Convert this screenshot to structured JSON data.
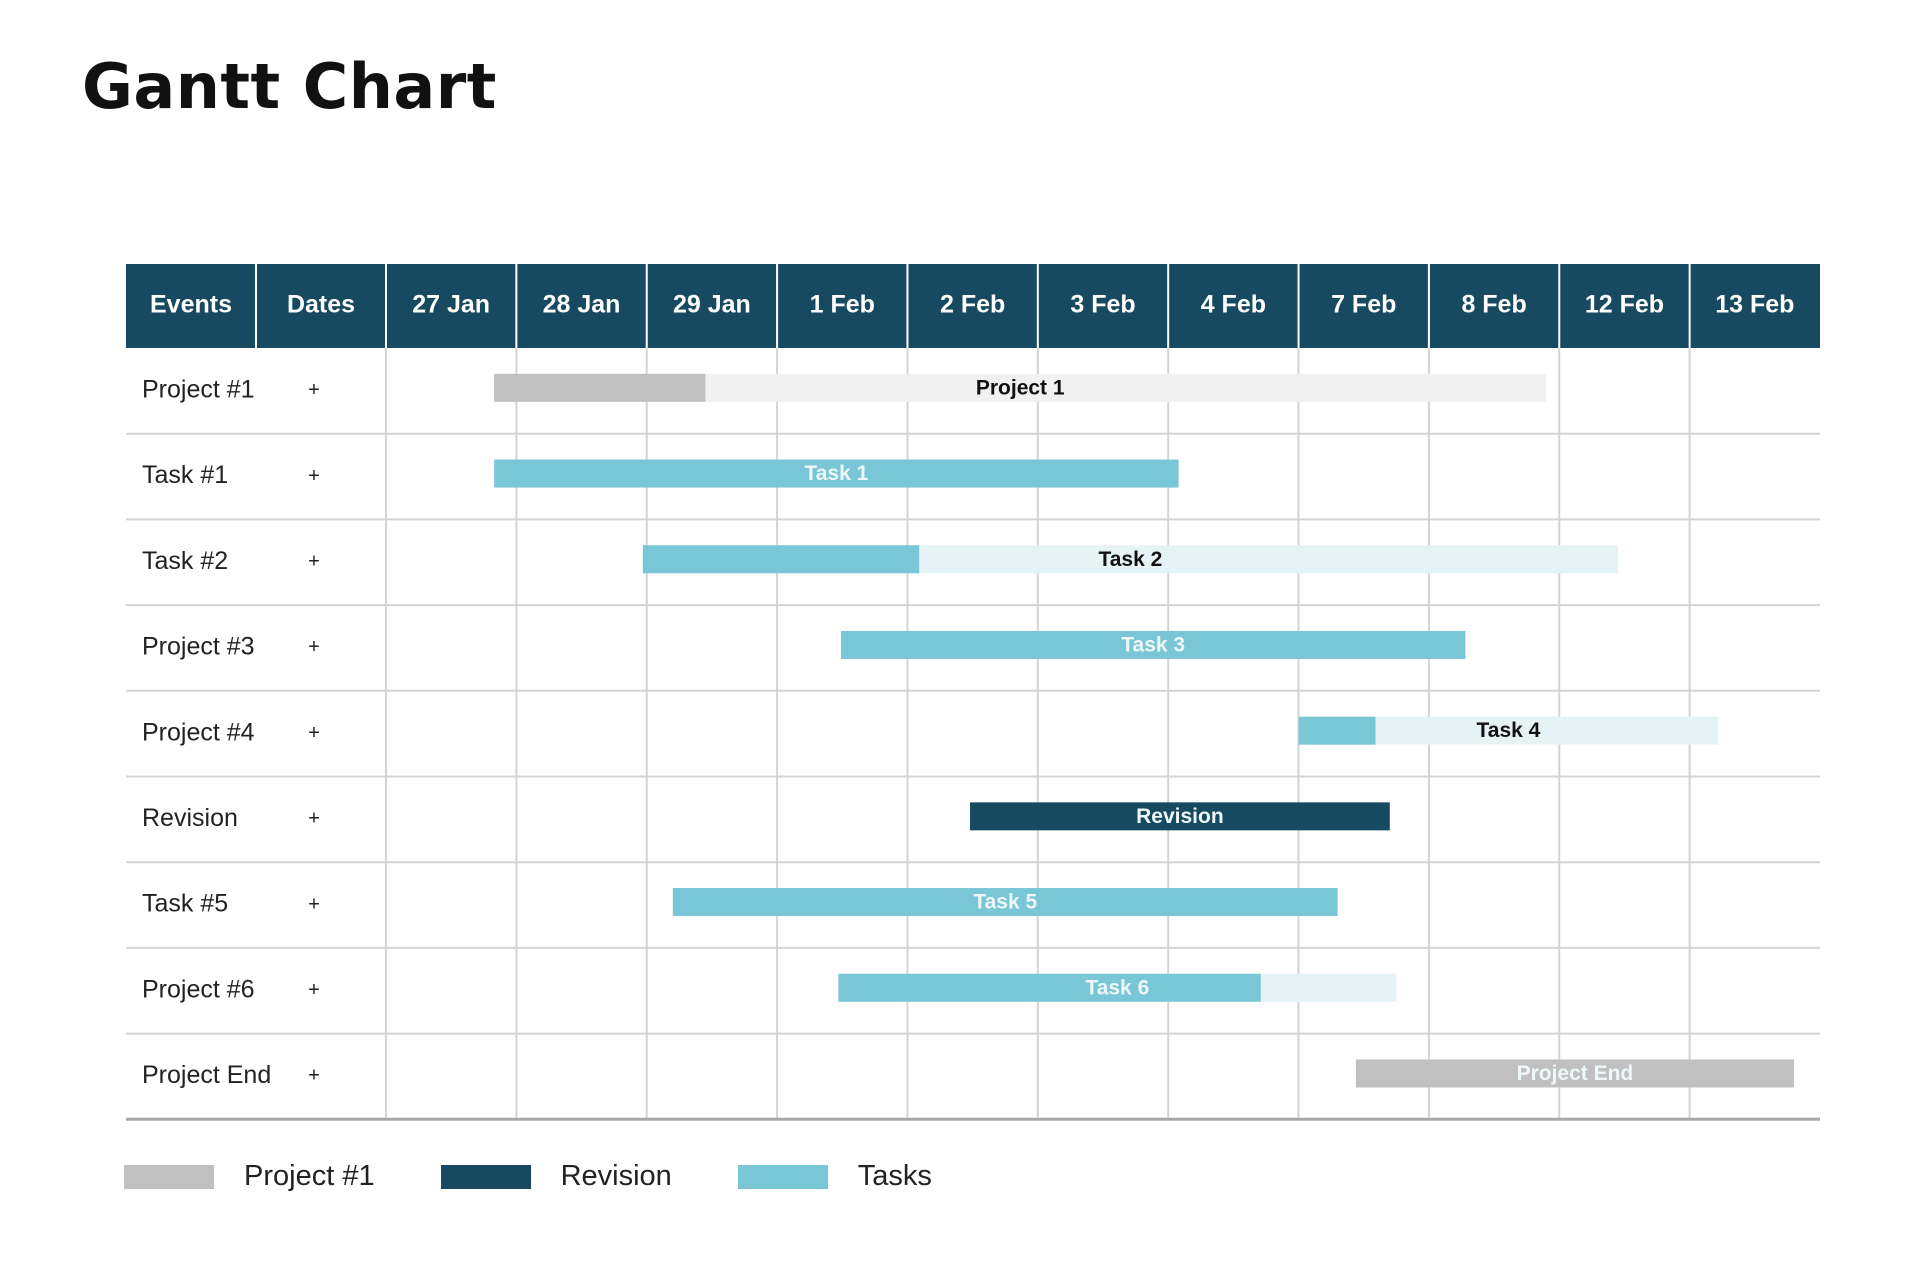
{
  "title": "Gantt Chart",
  "colors": {
    "header_bg": "#174a60",
    "header_text": "#ffffff",
    "grid": "#d4d4d4",
    "project": "#c0c0c0",
    "project_light": "#f1f1f1",
    "task": "#78c6d6",
    "task_light": "#e6f3f6",
    "revision": "#174a60"
  },
  "chart_data": {
    "type": "gantt",
    "header": {
      "events": "Events",
      "dates": "Dates",
      "columns": [
        "27 Jan",
        "28 Jan",
        "29 Jan",
        "1 Feb",
        "2 Feb",
        "3 Feb",
        "4 Feb",
        "7 Feb",
        "8 Feb",
        "12 Feb",
        "13 Feb"
      ]
    },
    "rows": [
      {
        "event": "Project #1",
        "dates": "+",
        "bar": {
          "label": "Project 1",
          "start": 0.83,
          "end": 8.9,
          "progress_end": 2.45,
          "kind": "project",
          "label_color": "dark"
        }
      },
      {
        "event": "Task #1",
        "dates": "+",
        "bar": {
          "label": "Task 1",
          "start": 0.83,
          "end": 6.08,
          "kind": "task",
          "label_color": "light"
        }
      },
      {
        "event": "Task #2",
        "dates": "+",
        "bar": {
          "label": "Task 2",
          "start": 1.97,
          "end": 9.45,
          "progress_end": 4.09,
          "kind": "task",
          "label_color": "dark"
        }
      },
      {
        "event": "Project #3",
        "dates": "+",
        "bar": {
          "label": "Task 3",
          "start": 3.49,
          "end": 8.28,
          "kind": "task",
          "label_color": "light"
        }
      },
      {
        "event": "Project #4",
        "dates": "+",
        "bar": {
          "label": "Task 4",
          "start": 7.0,
          "end": 10.22,
          "progress_end": 7.59,
          "kind": "task",
          "label_color": "dark"
        }
      },
      {
        "event": "Revision",
        "dates": "+",
        "bar": {
          "label": "Revision",
          "start": 4.48,
          "end": 7.7,
          "kind": "revision",
          "label_color": "light"
        }
      },
      {
        "event": "Task #5",
        "dates": "+",
        "bar": {
          "label": "Task 5",
          "start": 2.2,
          "end": 7.3,
          "kind": "task",
          "label_color": "light"
        }
      },
      {
        "event": "Project #6",
        "dates": "+",
        "bar": {
          "label": "Task 6",
          "start": 3.47,
          "end": 7.75,
          "progress_end": 6.71,
          "kind": "task",
          "label_color": "light"
        }
      },
      {
        "event": "Project End",
        "dates": "+",
        "bar": {
          "label": "Project End",
          "start": 7.44,
          "end": 10.8,
          "kind": "project",
          "label_color": "light"
        }
      }
    ],
    "legend": [
      {
        "label": "Project #1",
        "kind": "project"
      },
      {
        "label": "Revision",
        "kind": "revision"
      },
      {
        "label": "Tasks",
        "kind": "task"
      }
    ]
  }
}
